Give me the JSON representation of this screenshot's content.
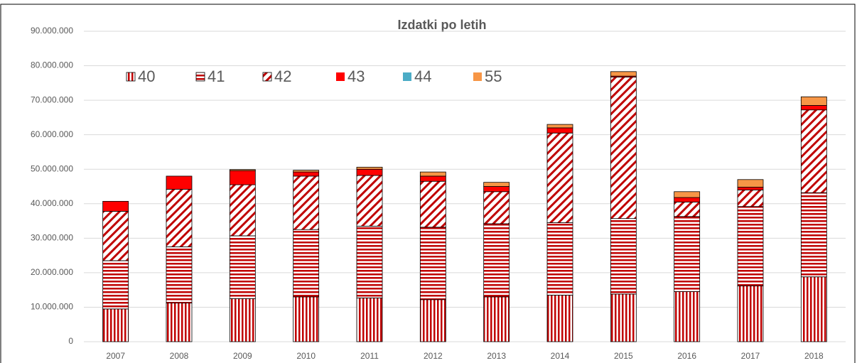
{
  "chart_data": {
    "type": "bar",
    "stacked": true,
    "title": "Izdatki po letih",
    "categories": [
      "2007",
      "2008",
      "2009",
      "2010",
      "2011",
      "2012",
      "2013",
      "2014",
      "2015",
      "2016",
      "2017",
      "2018"
    ],
    "series": [
      {
        "name": "40",
        "color": "#c00000",
        "pattern": "vertical",
        "values": [
          9500000,
          11200000,
          12500000,
          13000000,
          12700000,
          12200000,
          13000000,
          13500000,
          13800000,
          14500000,
          16200000,
          18800000
        ]
      },
      {
        "name": "41",
        "color": "#c00000",
        "pattern": "horizontal",
        "values": [
          14000000,
          16300000,
          18200000,
          19500000,
          20800000,
          21000000,
          21200000,
          21000000,
          21900000,
          21800000,
          23000000,
          24400000
        ]
      },
      {
        "name": "42",
        "color": "#c00000",
        "pattern": "diagonal",
        "values": [
          14300000,
          16700000,
          14800000,
          15500000,
          14700000,
          13300000,
          9300000,
          26000000,
          41000000,
          4200000,
          4800000,
          24000000
        ]
      },
      {
        "name": "43",
        "color": "#ff0000",
        "pattern": "solid",
        "values": [
          2900000,
          3800000,
          4100000,
          1200000,
          1800000,
          1500000,
          1500000,
          1500000,
          300000,
          1300000,
          800000,
          1300000
        ]
      },
      {
        "name": "44",
        "color": "#4bacc6",
        "pattern": "solid",
        "values": [
          0,
          0,
          0,
          0,
          0,
          0,
          0,
          0,
          0,
          0,
          0,
          0
        ]
      },
      {
        "name": "55",
        "color": "#f79646",
        "pattern": "solid",
        "values": [
          0,
          0,
          300000,
          500000,
          600000,
          1200000,
          1200000,
          1000000,
          1300000,
          1700000,
          2200000,
          2500000
        ]
      }
    ],
    "ylim": [
      0,
      90000000
    ],
    "yticks": [
      0,
      {
        "value": 10000000,
        "label": "10.000.000"
      },
      {
        "value": 20000000,
        "label": "20.000.000"
      },
      {
        "value": 30000000,
        "label": "30.000.000"
      },
      {
        "value": 40000000,
        "label": "40.000.000"
      },
      {
        "value": 50000000,
        "label": "50.000.000"
      },
      {
        "value": 60000000,
        "label": "60.000.000"
      },
      {
        "value": 70000000,
        "label": "70.000.000"
      },
      {
        "value": 80000000,
        "label": "80.000.000"
      },
      {
        "value": 90000000,
        "label": "90.000.000"
      }
    ],
    "grid": true,
    "legend": "top-left"
  }
}
